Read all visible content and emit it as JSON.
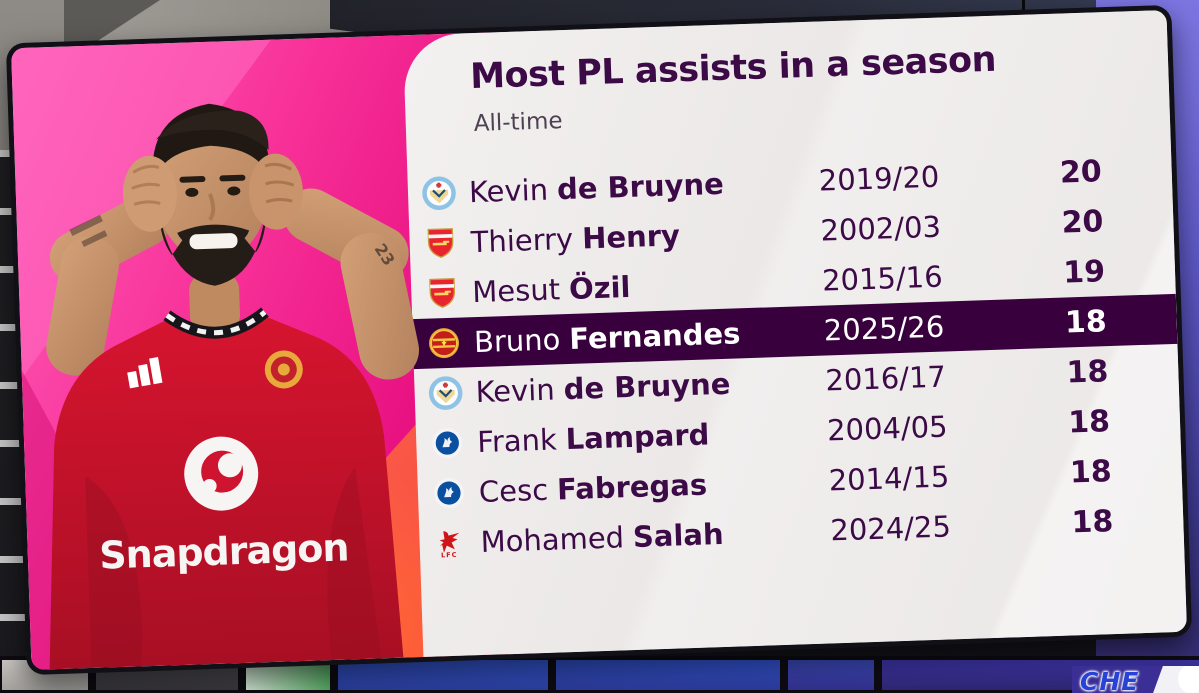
{
  "header": {
    "title": "Most PL assists in a season",
    "subtitle": "All-time"
  },
  "table": {
    "rows": [
      {
        "club": "man-city",
        "first": "Kevin",
        "last": "de Bruyne",
        "season": "2019/20",
        "assists": "20",
        "highlight": false
      },
      {
        "club": "arsenal",
        "first": "Thierry",
        "last": "Henry",
        "season": "2002/03",
        "assists": "20",
        "highlight": false
      },
      {
        "club": "arsenal",
        "first": "Mesut",
        "last": "Özil",
        "season": "2015/16",
        "assists": "19",
        "highlight": false
      },
      {
        "club": "man-utd",
        "first": "Bruno",
        "last": "Fernandes",
        "season": "2025/26",
        "assists": "18",
        "highlight": true
      },
      {
        "club": "man-city",
        "first": "Kevin",
        "last": "de Bruyne",
        "season": "2016/17",
        "assists": "18",
        "highlight": false
      },
      {
        "club": "chelsea",
        "first": "Frank",
        "last": "Lampard",
        "season": "2004/05",
        "assists": "18",
        "highlight": false
      },
      {
        "club": "chelsea",
        "first": "Cesc",
        "last": "Fabregas",
        "season": "2014/15",
        "assists": "18",
        "highlight": false
      },
      {
        "club": "liverpool",
        "first": "Mohamed",
        "last": "Salah",
        "season": "2024/25",
        "assists": "18",
        "highlight": false
      }
    ]
  },
  "player": {
    "shirt_sponsor": "Snapdragon",
    "tattoo": "23"
  },
  "score_bug": {
    "team_abbr": "CHE"
  },
  "colors": {
    "accent_purple": "#38003c",
    "highlight_bg": "#38003c",
    "panel_offwhite": "#ece9e8",
    "pane_pink": "#ef1c8b",
    "pane_orange": "#ff7742",
    "shirt_red": "#c81530",
    "studio_blue_wall": "#5d58c6"
  }
}
